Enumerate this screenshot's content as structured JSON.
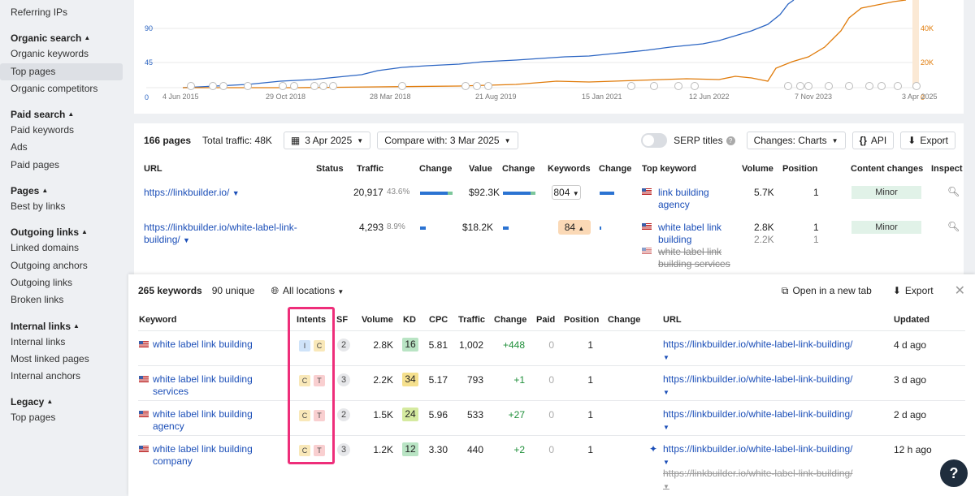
{
  "sidebar": {
    "top_item": "Referring IPs",
    "sections": [
      {
        "title": "Organic search",
        "items": [
          "Organic keywords",
          "Top pages",
          "Organic competitors"
        ],
        "active": 1
      },
      {
        "title": "Paid search",
        "items": [
          "Paid keywords",
          "Ads",
          "Paid pages"
        ]
      },
      {
        "title": "Pages",
        "items": [
          "Best by links"
        ]
      },
      {
        "title": "Outgoing links",
        "items": [
          "Linked domains",
          "Outgoing anchors",
          "Outgoing links",
          "Broken links"
        ]
      },
      {
        "title": "Internal links",
        "items": [
          "Internal links",
          "Most linked pages",
          "Internal anchors"
        ]
      },
      {
        "title": "Legacy",
        "items": [
          "Top pages"
        ]
      }
    ]
  },
  "chart": {
    "left_ticks": [
      "90",
      "45",
      "0"
    ],
    "right_ticks": [
      "40K",
      "20K",
      "0"
    ],
    "dates": [
      "4 Jun 2015",
      "29 Oct 2018",
      "28 Mar 2018",
      "21 Aug 2019",
      "15 Jan 2021",
      "12 Jun 2022",
      "7 Nov 2023",
      "3 Apr 2025"
    ],
    "colors": {
      "left_series": "#2d66c3",
      "right_series": "#e07b0a"
    }
  },
  "table": {
    "pages_count": "166 pages",
    "total_traffic": "Total traffic: 48K",
    "date_btn": "3 Apr 2025",
    "compare_btn": "Compare with: 3 Mar 2025",
    "serp_titles": "SERP titles",
    "changes_btn": "Changes:  Charts",
    "api_btn": "API",
    "export_btn": "Export",
    "headers": {
      "url": "URL",
      "status": "Status",
      "traffic": "Traffic",
      "change1": "Change",
      "value": "Value",
      "change2": "Change",
      "keywords": "Keywords",
      "change3": "Change",
      "top_keyword": "Top keyword",
      "volume": "Volume",
      "position": "Position",
      "content_changes": "Content changes",
      "inspect": "Inspect"
    },
    "rows": [
      {
        "url": "https://linkbuilder.io/",
        "traffic": "20,917",
        "traffic_pct": "43.6%",
        "value": "$92.3K",
        "keywords": "804",
        "top_kw": "link building agency",
        "volume": "5.7K",
        "position": "1",
        "content": "Minor"
      },
      {
        "url": "https://linkbuilder.io/white-label-link-building/",
        "traffic": "4,293",
        "traffic_pct": "8.9%",
        "value": "$18.2K",
        "keywords": "84",
        "top_kw": "white label link building",
        "top_kw2": "white label link building services",
        "volume": "2.8K",
        "volume2": "2.2K",
        "position": "1",
        "position2": "1",
        "content": "Minor"
      }
    ]
  },
  "panel": {
    "kw_count": "265 keywords",
    "unique": "90 unique",
    "locations": "All locations",
    "open_tab": "Open in a new tab",
    "export": "Export",
    "headers": {
      "keyword": "Keyword",
      "intents": "Intents",
      "sf": "SF",
      "volume": "Volume",
      "kd": "KD",
      "cpc": "CPC",
      "traffic": "Traffic",
      "change": "Change",
      "paid": "Paid",
      "position": "Position",
      "change2": "Change",
      "url": "URL",
      "updated": "Updated"
    },
    "rows": [
      {
        "keyword": "white label link building",
        "intents": [
          "I",
          "C"
        ],
        "sf": "2",
        "volume": "2.8K",
        "kd": "16",
        "kd_color": "#b9e4c4",
        "cpc": "5.81",
        "traffic": "1,002",
        "change": "+448",
        "paid": "0",
        "position": "1",
        "url": "https://linkbuilder.io/white-label-link-building/",
        "updated": "4 d ago"
      },
      {
        "keyword": "white label link building services",
        "intents": [
          "C",
          "T"
        ],
        "sf": "3",
        "volume": "2.2K",
        "kd": "34",
        "kd_color": "#f5e08e",
        "cpc": "5.17",
        "traffic": "793",
        "change": "+1",
        "paid": "0",
        "position": "1",
        "url": "https://linkbuilder.io/white-label-link-building/",
        "updated": "3 d ago"
      },
      {
        "keyword": "white label link building agency",
        "intents": [
          "C",
          "T"
        ],
        "sf": "2",
        "volume": "1.5K",
        "kd": "24",
        "kd_color": "#d5eaa0",
        "cpc": "5.96",
        "traffic": "533",
        "change": "+27",
        "paid": "0",
        "position": "1",
        "url": "https://linkbuilder.io/white-label-link-building/",
        "updated": "2 d ago"
      },
      {
        "keyword": "white label link building company",
        "intents": [
          "C",
          "T"
        ],
        "sf": "3",
        "volume": "1.2K",
        "kd": "12",
        "kd_color": "#b9e4c4",
        "cpc": "3.30",
        "traffic": "440",
        "change": "+2",
        "paid": "0",
        "position": "1",
        "url": "https://linkbuilder.io/white-label-link-building/",
        "url2": "https://linkbuilder.io/white-label-link-building/",
        "updated": "12 h ago"
      }
    ]
  },
  "help": "?"
}
